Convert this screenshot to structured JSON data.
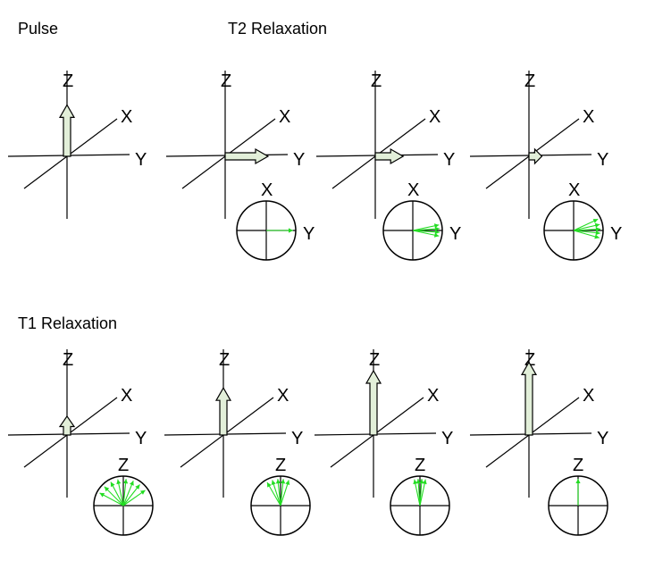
{
  "headings": {
    "pulse": "Pulse",
    "t2": "T2 Relaxation",
    "t1": "T1 Relaxation"
  },
  "axis_labels": {
    "x": "X",
    "y": "Y",
    "z": "Z"
  },
  "colors": {
    "magnetization_arrow_fill": "#e2efd9",
    "spin_vector": "#22dd22",
    "lines": "#000000"
  },
  "panels": [
    {
      "id": "pulse",
      "row": "top",
      "vector_axis": "z",
      "magnitude": 1.0,
      "inset": null
    },
    {
      "id": "t2-step-1",
      "row": "top",
      "vector_axis": "y",
      "magnitude": 1.0,
      "inset": {
        "axis_label": "X",
        "side_label": "Y",
        "spin_angles_deg": [
          0
        ]
      }
    },
    {
      "id": "t2-step-2",
      "row": "top",
      "vector_axis": "y",
      "magnitude": 0.65,
      "inset": {
        "axis_label": "X",
        "side_label": "Y",
        "spin_angles_deg": [
          -12,
          -4,
          4,
          12
        ]
      }
    },
    {
      "id": "t2-step-3",
      "row": "top",
      "vector_axis": "y",
      "magnitude": 0.3,
      "inset": {
        "axis_label": "X",
        "side_label": "Y",
        "spin_angles_deg": [
          -25,
          -13,
          -3,
          6,
          16
        ]
      }
    },
    {
      "id": "t1-step-1",
      "row": "bottom",
      "vector_axis": "z",
      "magnitude": 0.22,
      "inset": {
        "axis_label": "Z",
        "side_label": "",
        "spin_angles_deg": [
          -62,
          -45,
          -28,
          -12,
          6,
          22,
          38,
          55
        ]
      }
    },
    {
      "id": "t1-step-2",
      "row": "bottom",
      "vector_axis": "z",
      "magnitude": 0.55,
      "inset": {
        "axis_label": "Z",
        "side_label": "",
        "spin_angles_deg": [
          -30,
          -18,
          -6,
          6,
          18
        ]
      }
    },
    {
      "id": "t1-step-3",
      "row": "bottom",
      "vector_axis": "z",
      "magnitude": 0.75,
      "inset": {
        "axis_label": "Z",
        "side_label": "",
        "spin_angles_deg": [
          -12,
          -4,
          4,
          12
        ]
      }
    },
    {
      "id": "t1-step-4",
      "row": "bottom",
      "vector_axis": "z",
      "magnitude": 0.85,
      "inset": {
        "axis_label": "Z",
        "side_label": "",
        "spin_angles_deg": [
          0
        ]
      }
    }
  ]
}
